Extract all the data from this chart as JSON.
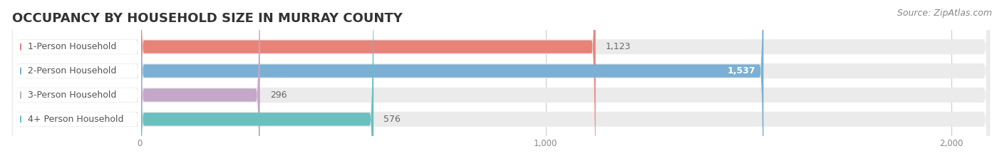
{
  "title": "OCCUPANCY BY HOUSEHOLD SIZE IN MURRAY COUNTY",
  "source": "Source: ZipAtlas.com",
  "categories": [
    "1-Person Household",
    "2-Person Household",
    "3-Person Household",
    "4+ Person Household"
  ],
  "values": [
    1123,
    1537,
    296,
    576
  ],
  "bar_colors": [
    "#E8837A",
    "#7BAFD4",
    "#C4A8C8",
    "#6BBFBF"
  ],
  "bar_bg_color": "#EBEBEB",
  "value_inside": [
    false,
    true,
    false,
    false
  ],
  "xlim_data": [
    0,
    2000
  ],
  "xticks": [
    0,
    1000,
    2000
  ],
  "xtick_labels": [
    "0",
    "1,000",
    "2,000"
  ],
  "title_fontsize": 13,
  "source_fontsize": 9,
  "label_fontsize": 9,
  "value_fontsize": 9,
  "background_color": "#FFFFFF"
}
